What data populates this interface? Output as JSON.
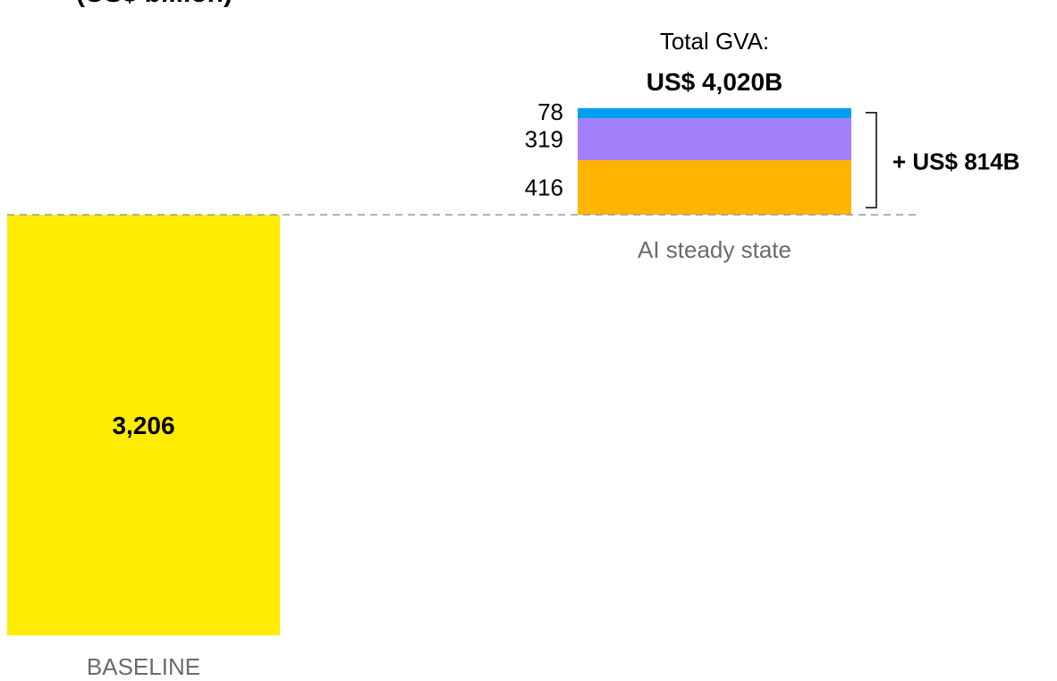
{
  "chart_data": {
    "type": "bar",
    "title": "",
    "clipped_title_fragment": "(US$ billion)",
    "categories": [
      "BASELINE",
      "AI steady state"
    ],
    "baseline": {
      "category": "BASELINE",
      "value": 3206,
      "label": "3,206",
      "color": "#FFEC00"
    },
    "ai_steady_state": {
      "category": "AI steady state",
      "segments": [
        {
          "value": 416,
          "label": "416",
          "color": "#FFB400"
        },
        {
          "value": 319,
          "label": "319",
          "color": "#A47FFB"
        },
        {
          "value": 78,
          "label": "78",
          "color": "#009FF0"
        }
      ],
      "total_title": "Total GVA:",
      "total_value": "US$ 4,020B",
      "increase_label": "+ US$ 814B"
    },
    "reference_line": {
      "value": 3206,
      "style": "dashed",
      "color": "#999999"
    },
    "xlabel": "",
    "ylabel": "",
    "grid": false,
    "legend": "none"
  }
}
